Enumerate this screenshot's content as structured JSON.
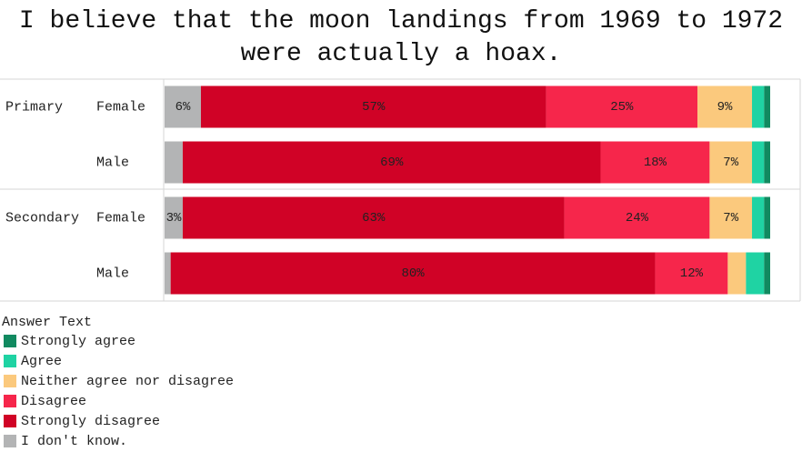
{
  "chart_data": {
    "type": "stacked-barh",
    "title": "I believe that the moon landings from 1969 to 1972 were actually a hoax.",
    "groups": [
      "Primary",
      null,
      "Secondary",
      null
    ],
    "categories": [
      "Female",
      "Male",
      "Female",
      "Male"
    ],
    "xlim": [
      0,
      100
    ],
    "legend_title": "Answer Text",
    "series": [
      {
        "name": "Strongly agree",
        "color": "#118a60",
        "values": [
          1,
          1,
          1,
          1
        ],
        "value_labels": [
          null,
          null,
          null,
          null
        ]
      },
      {
        "name": "Agree",
        "color": "#1fd3a3",
        "values": [
          2,
          2,
          2,
          3
        ],
        "value_labels": [
          null,
          null,
          null,
          null
        ]
      },
      {
        "name": "Neither agree nor disagree",
        "color": "#fbc97d",
        "values": [
          9,
          7,
          7,
          3
        ],
        "value_labels": [
          "9%",
          "7%",
          "7%",
          null
        ]
      },
      {
        "name": "Disagree",
        "color": "#f6264b",
        "values": [
          25,
          18,
          24,
          12
        ],
        "value_labels": [
          "25%",
          "18%",
          "24%",
          "12%"
        ]
      },
      {
        "name": "Strongly disagree",
        "color": "#d00226",
        "values": [
          57,
          69,
          63,
          80
        ],
        "value_labels": [
          "57%",
          "69%",
          "63%",
          "80%"
        ]
      },
      {
        "name": "I don't know.",
        "color": "#b3b4b5",
        "values": [
          6,
          3,
          3,
          1
        ],
        "value_labels": [
          "6%",
          null,
          "3%",
          null
        ]
      }
    ]
  }
}
